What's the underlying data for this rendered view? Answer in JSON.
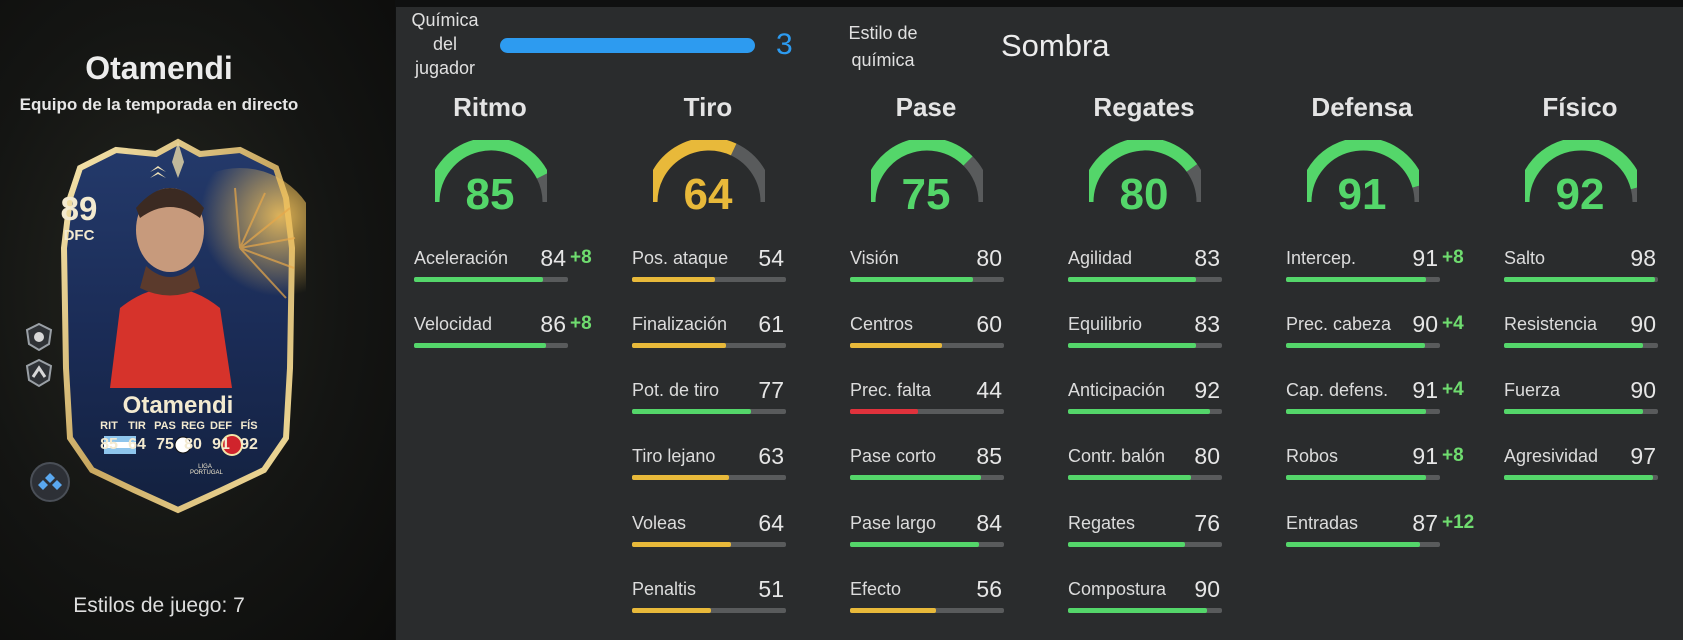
{
  "player": {
    "name": "Otamendi",
    "team": "Equipo de la temporada en directo",
    "playstyles_label": "Estilos de juego: 7"
  },
  "card": {
    "rating": "89",
    "position": "DFC",
    "name": "Otamendi",
    "stats": [
      {
        "label": "RIT",
        "value": "85"
      },
      {
        "label": "TIR",
        "value": "64"
      },
      {
        "label": "PAS",
        "value": "75"
      },
      {
        "label": "REG",
        "value": "80"
      },
      {
        "label": "DEF",
        "value": "91"
      },
      {
        "label": "FÍS",
        "value": "92"
      }
    ],
    "league_text": "LIGA PORTUGAL"
  },
  "chemistry": {
    "label_lines": [
      "Química",
      "del",
      "jugador"
    ],
    "value": "3",
    "style_label_lines": [
      "Estilo de",
      "química"
    ],
    "style_value": "Sombra"
  },
  "colors": {
    "high": "#54d66a",
    "mid": "#e8b93a",
    "low": "#e0323c",
    "track": "#595b5c",
    "chem": "#2d9bf0"
  },
  "categories": [
    {
      "title": "Ritmo",
      "value": 85,
      "stats": [
        {
          "name": "Aceleración",
          "value": 84,
          "bonus": "+8"
        },
        {
          "name": "Velocidad",
          "value": 86,
          "bonus": "+8"
        }
      ]
    },
    {
      "title": "Tiro",
      "value": 64,
      "stats": [
        {
          "name": "Pos. ataque",
          "value": 54,
          "bonus": ""
        },
        {
          "name": "Finalización",
          "value": 61,
          "bonus": ""
        },
        {
          "name": "Pot. de tiro",
          "value": 77,
          "bonus": ""
        },
        {
          "name": "Tiro lejano",
          "value": 63,
          "bonus": ""
        },
        {
          "name": "Voleas",
          "value": 64,
          "bonus": ""
        },
        {
          "name": "Penaltis",
          "value": 51,
          "bonus": ""
        }
      ]
    },
    {
      "title": "Pase",
      "value": 75,
      "stats": [
        {
          "name": "Visión",
          "value": 80,
          "bonus": ""
        },
        {
          "name": "Centros",
          "value": 60,
          "bonus": ""
        },
        {
          "name": "Prec. falta",
          "value": 44,
          "bonus": ""
        },
        {
          "name": "Pase corto",
          "value": 85,
          "bonus": ""
        },
        {
          "name": "Pase largo",
          "value": 84,
          "bonus": ""
        },
        {
          "name": "Efecto",
          "value": 56,
          "bonus": ""
        }
      ]
    },
    {
      "title": "Regates",
      "value": 80,
      "stats": [
        {
          "name": "Agilidad",
          "value": 83,
          "bonus": ""
        },
        {
          "name": "Equilibrio",
          "value": 83,
          "bonus": ""
        },
        {
          "name": "Anticipación",
          "value": 92,
          "bonus": ""
        },
        {
          "name": "Contr. balón",
          "value": 80,
          "bonus": ""
        },
        {
          "name": "Regates",
          "value": 76,
          "bonus": ""
        },
        {
          "name": "Compostura",
          "value": 90,
          "bonus": ""
        }
      ]
    },
    {
      "title": "Defensa",
      "value": 91,
      "stats": [
        {
          "name": "Intercep.",
          "value": 91,
          "bonus": "+8"
        },
        {
          "name": "Prec. cabeza",
          "value": 90,
          "bonus": "+4"
        },
        {
          "name": "Cap. defens.",
          "value": 91,
          "bonus": "+4"
        },
        {
          "name": "Robos",
          "value": 91,
          "bonus": "+8"
        },
        {
          "name": "Entradas",
          "value": 87,
          "bonus": "+12"
        }
      ]
    },
    {
      "title": "Físico",
      "value": 92,
      "stats": [
        {
          "name": "Salto",
          "value": 98,
          "bonus": ""
        },
        {
          "name": "Resistencia",
          "value": 90,
          "bonus": ""
        },
        {
          "name": "Fuerza",
          "value": 90,
          "bonus": ""
        },
        {
          "name": "Agresividad",
          "value": 97,
          "bonus": ""
        }
      ]
    }
  ]
}
